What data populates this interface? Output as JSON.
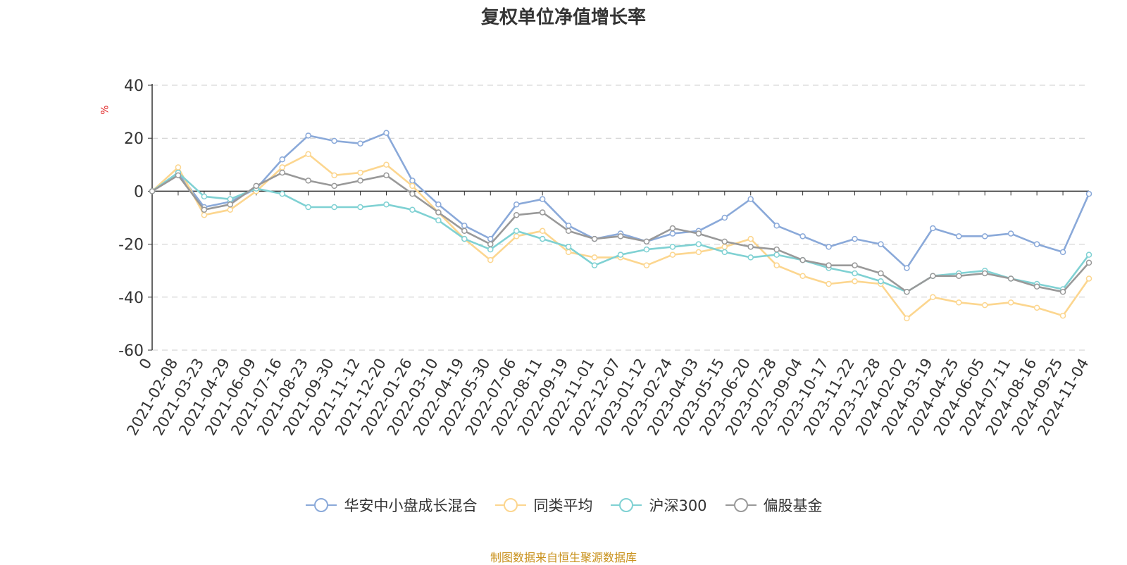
{
  "chart_data": {
    "type": "line",
    "title": "复权单位净值增长率",
    "ylabel": "%",
    "xlabel": "",
    "ylim": [
      -60,
      40
    ],
    "yticks": [
      40,
      20,
      0,
      -20,
      -40,
      -60
    ],
    "grid": true,
    "legend_position": "bottom",
    "categories": [
      "0",
      "2021-02-08",
      "2021-03-23",
      "2021-04-29",
      "2021-06-09",
      "2021-07-16",
      "2021-08-23",
      "2021-09-30",
      "2021-11-12",
      "2021-12-20",
      "2022-01-26",
      "2022-03-10",
      "2022-04-19",
      "2022-05-30",
      "2022-07-06",
      "2022-08-11",
      "2022-09-19",
      "2022-11-01",
      "2022-12-07",
      "2023-01-12",
      "2023-02-24",
      "2023-04-03",
      "2023-05-15",
      "2023-06-20",
      "2023-07-28",
      "2023-09-04",
      "2023-10-17",
      "2023-11-22",
      "2023-12-28",
      "2024-02-02",
      "2024-03-19",
      "2024-04-25",
      "2024-06-05",
      "2024-07-11",
      "2024-08-16",
      "2024-09-25",
      "2024-11-04"
    ],
    "series": [
      {
        "name": "华安中小盘成长混合",
        "color": "#8aa9d9",
        "values": [
          0,
          7,
          -6,
          -4,
          1,
          12,
          21,
          19,
          18,
          22,
          4,
          -5,
          -13,
          -18,
          -5,
          -3,
          -13,
          -18,
          -16,
          -19,
          -16,
          -15,
          -10,
          -3,
          -13,
          -17,
          -21,
          -18,
          -20,
          -29,
          -14,
          -17,
          -17,
          -16,
          -20,
          -23,
          -1
        ]
      },
      {
        "name": "同类平均",
        "color": "#fcd68f",
        "values": [
          0,
          9,
          -9,
          -7,
          0,
          9,
          14,
          6,
          7,
          10,
          2,
          -8,
          -18,
          -26,
          -17,
          -15,
          -23,
          -25,
          -25,
          -28,
          -24,
          -23,
          -21,
          -18,
          -28,
          -32,
          -35,
          -34,
          -35,
          -48,
          -40,
          -42,
          -43,
          -42,
          -44,
          -47,
          -33
        ]
      },
      {
        "name": "沪深300",
        "color": "#7fd1d3",
        "values": [
          0,
          7,
          -2,
          -3,
          1,
          -1,
          -6,
          -6,
          -6,
          -5,
          -7,
          -11,
          -18,
          -22,
          -15,
          -18,
          -21,
          -28,
          -24,
          -22,
          -21,
          -20,
          -23,
          -25,
          -24,
          -26,
          -29,
          -31,
          -34,
          -38,
          -32,
          -31,
          -30,
          -33,
          -35,
          -37,
          -24
        ]
      },
      {
        "name": "偏股基金",
        "color": "#999999",
        "values": [
          0,
          6,
          -7,
          -5,
          2,
          7,
          4,
          2,
          4,
          6,
          -1,
          -8,
          -15,
          -20,
          -9,
          -8,
          -15,
          -18,
          -17,
          -19,
          -14,
          -16,
          -19,
          -21,
          -22,
          -26,
          -28,
          -28,
          -31,
          -38,
          -32,
          -32,
          -31,
          -33,
          -36,
          -38,
          -27
        ]
      }
    ]
  },
  "source_text": "制图数据来自恒生聚源数据库"
}
